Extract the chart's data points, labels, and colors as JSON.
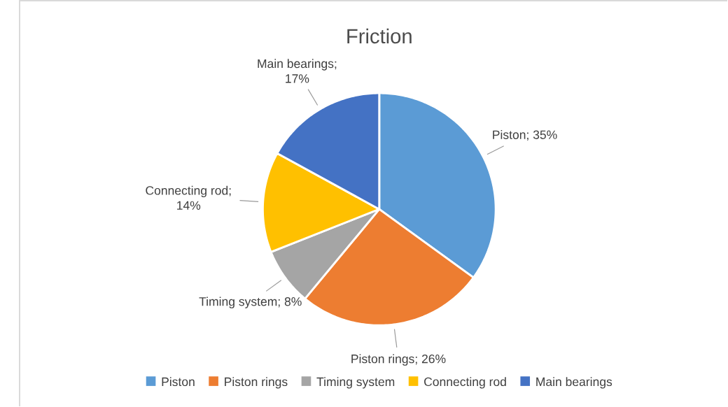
{
  "chart_data": {
    "type": "pie",
    "title": "Friction",
    "categories": [
      "Piston",
      "Piston rings",
      "Timing system",
      "Connecting rod",
      "Main bearings"
    ],
    "values": [
      35,
      26,
      8,
      14,
      17
    ],
    "colors": [
      "#5b9bd5",
      "#ed7d31",
      "#a5a5a5",
      "#ffc000",
      "#4472c4"
    ],
    "value_labels": [
      "Piston; 35%",
      "Piston rings; 26%",
      "Timing system; 8%",
      "Connecting rod; 14%",
      "Main bearings; 17%"
    ],
    "legend": "bottom"
  }
}
